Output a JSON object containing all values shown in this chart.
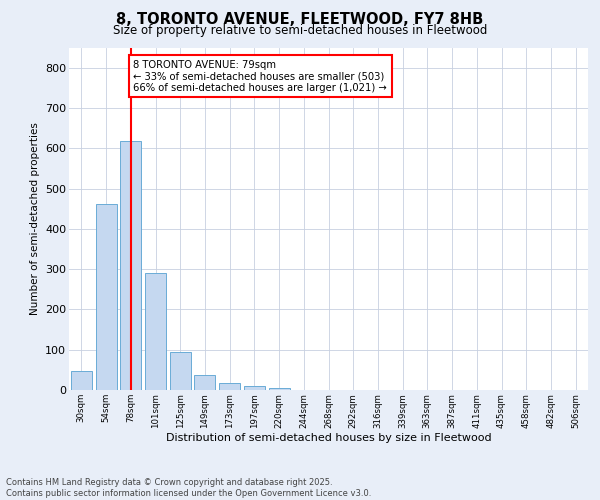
{
  "title": "8, TORONTO AVENUE, FLEETWOOD, FY7 8HB",
  "subtitle": "Size of property relative to semi-detached houses in Fleetwood",
  "xlabel": "Distribution of semi-detached houses by size in Fleetwood",
  "ylabel": "Number of semi-detached properties",
  "bar_labels": [
    "30sqm",
    "54sqm",
    "78sqm",
    "101sqm",
    "125sqm",
    "149sqm",
    "173sqm",
    "197sqm",
    "220sqm",
    "244sqm",
    "268sqm",
    "292sqm",
    "316sqm",
    "339sqm",
    "363sqm",
    "387sqm",
    "411sqm",
    "435sqm",
    "458sqm",
    "482sqm",
    "506sqm"
  ],
  "bar_values": [
    46,
    462,
    619,
    290,
    94,
    37,
    17,
    9,
    5,
    0,
    0,
    0,
    0,
    0,
    0,
    0,
    0,
    0,
    0,
    0,
    0
  ],
  "bar_color": "#c5d8f0",
  "bar_edge_color": "#6aacd6",
  "vline_x_idx": 2,
  "vline_color": "red",
  "annotation_text": "8 TORONTO AVENUE: 79sqm\n← 33% of semi-detached houses are smaller (503)\n66% of semi-detached houses are larger (1,021) →",
  "annotation_box_color": "white",
  "annotation_box_edge": "red",
  "ylim": [
    0,
    850
  ],
  "yticks": [
    0,
    100,
    200,
    300,
    400,
    500,
    600,
    700,
    800
  ],
  "footer": "Contains HM Land Registry data © Crown copyright and database right 2025.\nContains public sector information licensed under the Open Government Licence v3.0.",
  "bg_color": "#e8eef8",
  "plot_bg_color": "#ffffff",
  "grid_color": "#c8d0e0"
}
